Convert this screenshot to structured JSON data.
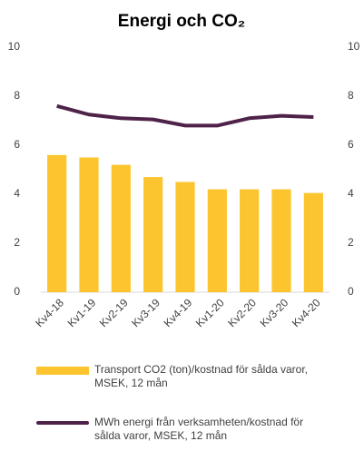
{
  "chart_data": {
    "type": "bar+line",
    "title": "Energi och CO₂",
    "categories": [
      "Kv4-18",
      "Kv1-19",
      "Kv2-19",
      "Kv3-19",
      "Kv4-19",
      "Kv1-20",
      "Kv2-20",
      "Kv3-20",
      "Kv4-20"
    ],
    "series": [
      {
        "name": "Transport CO2 (ton)/kostnad för sålda varor, MSEK, 12 mån",
        "type": "bar",
        "color": "#fcc52f",
        "values": [
          5.6,
          5.5,
          5.2,
          4.7,
          4.5,
          4.2,
          4.2,
          4.2,
          4.05
        ]
      },
      {
        "name": "MWh energi från verksamheten/kostnad för sålda varor, MSEK, 12 mån",
        "type": "line",
        "axis": "y2",
        "color": "#4e2249",
        "values": [
          7.6,
          7.25,
          7.1,
          7.05,
          6.8,
          6.8,
          7.1,
          7.2,
          7.15
        ]
      }
    ],
    "ylim": [
      0,
      10
    ],
    "yticks": [
      0,
      2,
      4,
      6,
      8,
      10
    ],
    "y2lim": [
      0,
      10
    ],
    "y2ticks": [
      0,
      2,
      4,
      6,
      8,
      10
    ],
    "grid": false,
    "legend": "bottom"
  }
}
